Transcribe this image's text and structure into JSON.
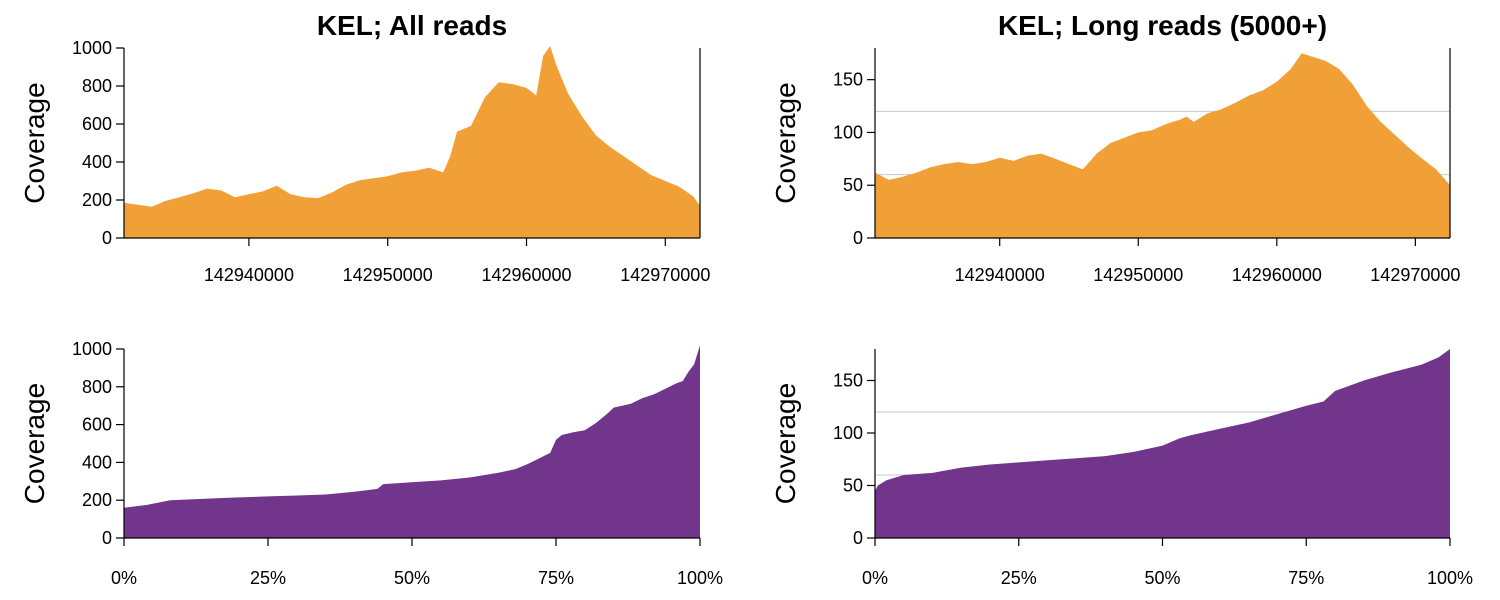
{
  "colors": {
    "position_fill": "#F0A037",
    "cumulative_fill": "#71368B",
    "reference_line": "#C8C8C8"
  },
  "chart_data": [
    {
      "type": "area",
      "title": "KEL; All reads",
      "xlabel": "",
      "ylabel": "Coverage",
      "xlim": [
        142931000,
        142972500
      ],
      "ylim": [
        0,
        1000
      ],
      "x_ticks": [
        142940000,
        142950000,
        142960000,
        142970000
      ],
      "x_tick_labels": [
        "142940000",
        "142950000",
        "142960000",
        "142970000"
      ],
      "y_ticks": [
        0,
        200,
        400,
        600,
        800,
        1000
      ],
      "y_tick_labels": [
        "0",
        "200",
        "400",
        "600",
        "800",
        "1000"
      ],
      "reference_lines": [],
      "x": [
        142931000,
        142932000,
        142933000,
        142934000,
        142935000,
        142936000,
        142937000,
        142938000,
        142939000,
        142940000,
        142941000,
        142942000,
        142943000,
        142944000,
        142945000,
        142946000,
        142947000,
        142948000,
        142949000,
        142950000,
        142951000,
        142952000,
        142953000,
        142954000,
        142954500,
        142955000,
        142956000,
        142957000,
        142958000,
        142959000,
        142960000,
        142960700,
        142961200,
        142961700,
        142962200,
        142963000,
        142964000,
        142965000,
        142966000,
        142967000,
        142968000,
        142969000,
        142970000,
        142971000,
        142972000,
        142972500
      ],
      "values": [
        185,
        175,
        165,
        195,
        215,
        235,
        260,
        250,
        215,
        230,
        245,
        275,
        230,
        215,
        210,
        240,
        280,
        305,
        315,
        325,
        345,
        355,
        370,
        345,
        430,
        560,
        590,
        740,
        820,
        810,
        790,
        750,
        960,
        1010,
        900,
        760,
        640,
        540,
        480,
        430,
        380,
        330,
        300,
        270,
        220,
        170
      ]
    },
    {
      "type": "area",
      "title": "KEL; Long reads (5000+)",
      "xlabel": "",
      "ylabel": "Coverage",
      "xlim": [
        142931000,
        142972500
      ],
      "ylim": [
        0,
        180
      ],
      "x_ticks": [
        142940000,
        142950000,
        142960000,
        142970000
      ],
      "x_tick_labels": [
        "142940000",
        "142950000",
        "142960000",
        "142970000"
      ],
      "y_ticks": [
        0,
        50,
        100,
        150
      ],
      "y_tick_labels": [
        "0",
        "50",
        "100",
        "150"
      ],
      "reference_lines": [
        60,
        120
      ],
      "x": [
        142931000,
        142932000,
        142933000,
        142934000,
        142935000,
        142936000,
        142937000,
        142938000,
        142939000,
        142940000,
        142941000,
        142942000,
        142943000,
        142944000,
        142945000,
        142946000,
        142947000,
        142948000,
        142949000,
        142950000,
        142951000,
        142952000,
        142953000,
        142953500,
        142954000,
        142955000,
        142956000,
        142957000,
        142958000,
        142959000,
        142960000,
        142961000,
        142961800,
        142962500,
        142963500,
        142964500,
        142965500,
        142966500,
        142967500,
        142968500,
        142969500,
        142970500,
        142971500,
        142972500
      ],
      "values": [
        62,
        55,
        58,
        62,
        67,
        70,
        72,
        70,
        72,
        76,
        73,
        78,
        80,
        75,
        70,
        65,
        80,
        90,
        95,
        100,
        102,
        108,
        112,
        115,
        110,
        118,
        122,
        128,
        135,
        140,
        148,
        160,
        175,
        172,
        168,
        160,
        145,
        125,
        110,
        98,
        86,
        75,
        65,
        50
      ]
    },
    {
      "type": "area",
      "title": "",
      "xlabel": "",
      "ylabel": "Coverage",
      "xlim": [
        0,
        100
      ],
      "ylim": [
        0,
        1000
      ],
      "x_ticks": [
        0,
        25,
        50,
        75,
        100
      ],
      "x_tick_labels": [
        "0%",
        "25%",
        "50%",
        "75%",
        "100%"
      ],
      "y_ticks": [
        0,
        200,
        400,
        600,
        800,
        1000
      ],
      "y_tick_labels": [
        "0",
        "200",
        "400",
        "600",
        "800",
        "1000"
      ],
      "reference_lines": [],
      "x": [
        0,
        4,
        8,
        12,
        16,
        20,
        25,
        30,
        35,
        40,
        44,
        45,
        50,
        55,
        60,
        62,
        65,
        68,
        70,
        72,
        74,
        75,
        76,
        78,
        80,
        82,
        84,
        85,
        88,
        90,
        92,
        94,
        96,
        97,
        98,
        99,
        100
      ],
      "values": [
        160,
        175,
        200,
        205,
        210,
        215,
        220,
        225,
        230,
        245,
        260,
        285,
        295,
        305,
        320,
        330,
        345,
        365,
        390,
        420,
        450,
        520,
        545,
        560,
        570,
        610,
        660,
        690,
        710,
        740,
        760,
        790,
        820,
        830,
        880,
        920,
        1020
      ]
    },
    {
      "type": "area",
      "title": "",
      "xlabel": "",
      "ylabel": "Coverage",
      "xlim": [
        0,
        100
      ],
      "ylim": [
        0,
        180
      ],
      "x_ticks": [
        0,
        25,
        50,
        75,
        100
      ],
      "x_tick_labels": [
        "0%",
        "25%",
        "50%",
        "75%",
        "100%"
      ],
      "y_ticks": [
        0,
        50,
        100,
        150
      ],
      "y_tick_labels": [
        "0",
        "50",
        "100",
        "150"
      ],
      "reference_lines": [
        60,
        120
      ],
      "x": [
        0,
        0.5,
        2,
        5,
        10,
        15,
        20,
        25,
        30,
        35,
        40,
        45,
        50,
        53,
        55,
        60,
        65,
        70,
        75,
        78,
        80,
        85,
        90,
        95,
        98,
        100
      ],
      "values": [
        45,
        50,
        55,
        60,
        62,
        67,
        70,
        72,
        74,
        76,
        78,
        82,
        88,
        95,
        98,
        104,
        110,
        118,
        126,
        130,
        140,
        150,
        158,
        165,
        172,
        180
      ]
    }
  ]
}
